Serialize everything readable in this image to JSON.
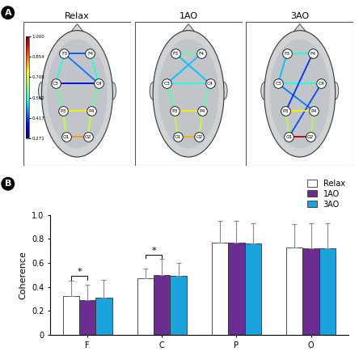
{
  "chart_data": [
    {
      "type": "network",
      "panel": "A",
      "nodes": [
        "F3",
        "F4",
        "C3",
        "C4",
        "P3",
        "P4",
        "O1",
        "O2"
      ],
      "maps": [
        {
          "title": "Relax",
          "edges": [
            [
              "F3",
              "F4",
              0.42
            ],
            [
              "F3",
              "C3",
              0.55
            ],
            [
              "F4",
              "C4",
              0.55
            ],
            [
              "C3",
              "C4",
              0.33
            ],
            [
              "F3",
              "C4",
              0.45
            ],
            [
              "C3",
              "P3",
              0.62
            ],
            [
              "C4",
              "P4",
              0.62
            ],
            [
              "P3",
              "P4",
              0.75
            ],
            [
              "P3",
              "O1",
              0.7
            ],
            [
              "P4",
              "O2",
              0.7
            ],
            [
              "O1",
              "O2",
              0.82
            ]
          ]
        },
        {
          "title": "1AO",
          "edges": [
            [
              "F3",
              "F4",
              0.6
            ],
            [
              "F3",
              "C4",
              0.5
            ],
            [
              "F4",
              "C3",
              0.5
            ],
            [
              "C3",
              "C4",
              0.55
            ],
            [
              "C3",
              "P3",
              0.6
            ],
            [
              "C4",
              "P4",
              0.6
            ],
            [
              "P3",
              "P4",
              0.75
            ],
            [
              "P3",
              "O1",
              0.7
            ],
            [
              "P4",
              "O2",
              0.7
            ],
            [
              "O1",
              "O2",
              0.8
            ]
          ]
        },
        {
          "title": "3AO",
          "edges": [
            [
              "F3",
              "F4",
              0.55
            ],
            [
              "F3",
              "C3",
              0.5
            ],
            [
              "C3",
              "C4",
              0.55
            ],
            [
              "C3",
              "P4",
              0.45
            ],
            [
              "C4",
              "O1",
              0.42
            ],
            [
              "F4",
              "P3",
              0.4
            ],
            [
              "P3",
              "P4",
              0.75
            ],
            [
              "P3",
              "O1",
              0.68
            ],
            [
              "P4",
              "O2",
              0.68
            ],
            [
              "O1",
              "O2",
              0.97
            ]
          ]
        }
      ],
      "colorbar": {
        "range": [
          0.271,
          1.0
        ],
        "ticks": [
          {
            "value": 1.0,
            "label": "1.000"
          },
          0.854,
          0.708,
          0.562,
          0.417,
          0.271
        ]
      }
    },
    {
      "type": "bar",
      "panel": "B",
      "categories": [
        "F",
        "C",
        "P",
        "O"
      ],
      "y_label": "Coherence",
      "series": [
        {
          "name": "Relax",
          "color": "#ffffff",
          "values": [
            0.32,
            0.47,
            0.77,
            0.73
          ],
          "errors": [
            0.13,
            0.08,
            0.18,
            0.19
          ]
        },
        {
          "name": "1AO",
          "color": "#6b2d8f",
          "values": [
            0.29,
            0.5,
            0.77,
            0.72
          ],
          "errors": [
            0.13,
            0.13,
            0.18,
            0.21
          ]
        },
        {
          "name": "3AO",
          "color": "#1aa3dc",
          "values": [
            0.31,
            0.49,
            0.76,
            0.72
          ],
          "errors": [
            0.15,
            0.11,
            0.17,
            0.21
          ]
        }
      ],
      "significance": [
        {
          "category": "F",
          "series": [
            "Relax",
            "1AO"
          ],
          "label": "*"
        },
        {
          "category": "C",
          "series": [
            "Relax",
            "1AO"
          ],
          "label": "*"
        }
      ],
      "ylim": [
        0,
        1.0
      ],
      "yticks": [
        0,
        0.2,
        0.4,
        0.6,
        0.8,
        1.0
      ],
      "legend": "upper right"
    }
  ]
}
